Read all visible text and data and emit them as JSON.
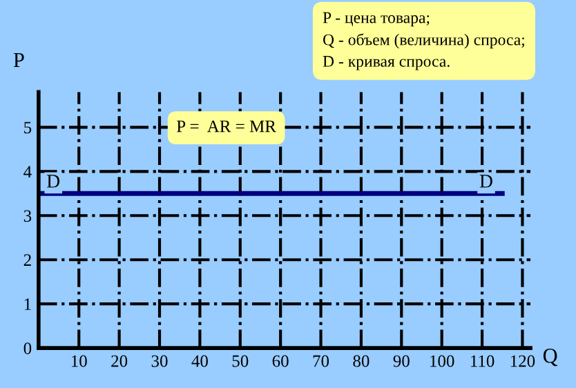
{
  "chart_data": {
    "type": "line",
    "xlabel": "Q",
    "ylabel": "P",
    "x": [
      0,
      115
    ],
    "series": [
      {
        "color": "#000080",
        "values": [
          3.5,
          3.5
        ]
      }
    ],
    "xlim": [
      0,
      122
    ],
    "ylim": [
      0,
      5.8
    ],
    "xticks": [
      10,
      20,
      30,
      40,
      50,
      60,
      70,
      80,
      90,
      100,
      110,
      120
    ],
    "yticks": [
      0,
      1,
      2,
      3,
      4,
      5
    ],
    "grid": true,
    "marker": "none",
    "line_style": "solid",
    "annotations": [
      "D",
      "D",
      "P =  AR = MR",
      "P - цена товара;\nQ - объем (величина) спроса;\nD - кривая спроса."
    ]
  }
}
